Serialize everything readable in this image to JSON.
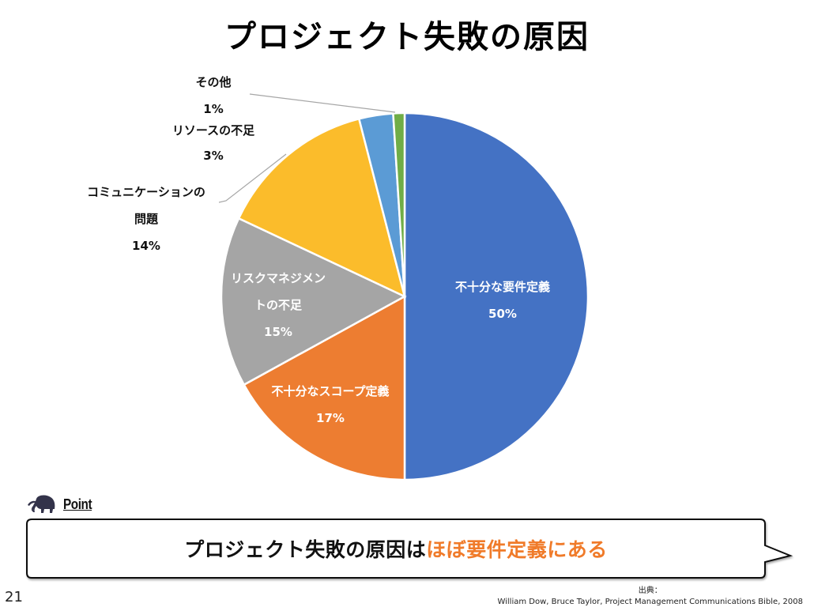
{
  "slide": {
    "title": "プロジェクト失敗の原因",
    "page_number": "21"
  },
  "chart_data": {
    "type": "pie",
    "title": "プロジェクト失敗の原因",
    "start_angle": "12 o'clock",
    "direction": "clockwise",
    "slices": [
      {
        "label_lines": [
          "不十分な要件定義"
        ],
        "value": 50,
        "value_label": "50%",
        "color": "#4472c4",
        "label_color": "#ffffff",
        "label_position": "inside"
      },
      {
        "label_lines": [
          "不十分なスコープ定義"
        ],
        "value": 17,
        "value_label": "17%",
        "color": "#ed7d31",
        "label_color": "#ffffff",
        "label_position": "inside"
      },
      {
        "label_lines": [
          "リスクマネジメン",
          "トの不足"
        ],
        "value": 15,
        "value_label": "15%",
        "color": "#a5a5a5",
        "label_color": "#ffffff",
        "label_position": "inside"
      },
      {
        "label_lines": [
          "コミュニケーションの",
          "問題"
        ],
        "value": 14,
        "value_label": "14%",
        "color": "#fbbc2b",
        "label_color": "#111111",
        "label_position": "outside"
      },
      {
        "label_lines": [
          "リソースの不足"
        ],
        "value": 3,
        "value_label": "3%",
        "color": "#5b9bd5",
        "label_color": "#111111",
        "label_position": "outside"
      },
      {
        "label_lines": [
          "その他"
        ],
        "value": 1,
        "value_label": "1%",
        "color": "#70ad47",
        "label_color": "#111111",
        "label_position": "outside"
      }
    ]
  },
  "point": {
    "icon": "mammoth-icon",
    "label": "Point",
    "message_prefix": "プロジェクト失敗の原因は",
    "message_highlight": "ほぼ要件定義にある",
    "highlight_color": "#f07b2a"
  },
  "source": {
    "heading": "出典：",
    "citation": "William Dow, Bruce Taylor, Project Management Communications Bible, 2008"
  }
}
